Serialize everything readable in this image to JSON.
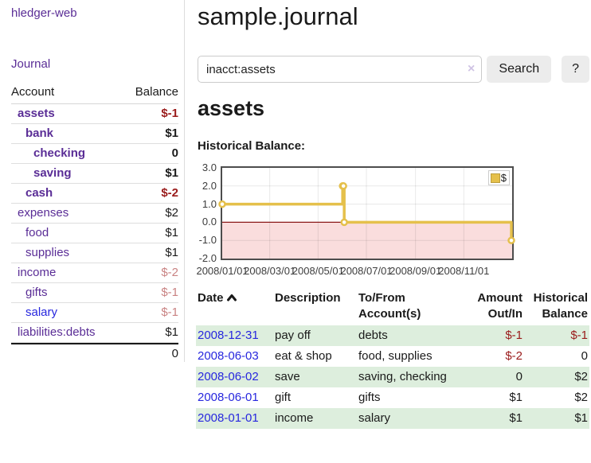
{
  "colors": {
    "purple": "#5A2D96",
    "blue": "#2727DE",
    "negative": "#9A1B1B",
    "faded": "#C98383",
    "normal": "#1A1A1A",
    "stripe": "#DDEEDD"
  },
  "sidebar": {
    "app_title": "hledger-web",
    "journal_label": "Journal",
    "table": {
      "account_header": "Account",
      "balance_header": "Balance",
      "total": "0"
    },
    "accounts": [
      {
        "name": "assets",
        "level": 1,
        "bold": true,
        "name_color": "purple",
        "balance": "$-1",
        "balance_color": "negative"
      },
      {
        "name": "bank",
        "level": 2,
        "bold": true,
        "name_color": "purple",
        "balance": "$1",
        "balance_color": "normal"
      },
      {
        "name": "checking",
        "level": 3,
        "bold": true,
        "name_color": "purple",
        "balance": "0",
        "balance_color": "normal"
      },
      {
        "name": "saving",
        "level": 3,
        "bold": true,
        "name_color": "purple",
        "balance": "$1",
        "balance_color": "normal"
      },
      {
        "name": "cash",
        "level": 2,
        "bold": true,
        "name_color": "purple",
        "balance": "$-2",
        "balance_color": "negative"
      },
      {
        "name": "expenses",
        "level": 1,
        "bold": false,
        "name_color": "purple",
        "balance": "$2",
        "balance_color": "normal"
      },
      {
        "name": "food",
        "level": 2,
        "bold": false,
        "name_color": "purple",
        "balance": "$1",
        "balance_color": "normal"
      },
      {
        "name": "supplies",
        "level": 2,
        "bold": false,
        "name_color": "purple",
        "balance": "$1",
        "balance_color": "normal"
      },
      {
        "name": "income",
        "level": 1,
        "bold": false,
        "name_color": "purple",
        "balance": "$-2",
        "balance_color": "faded"
      },
      {
        "name": "gifts",
        "level": 2,
        "bold": false,
        "name_color": "purple",
        "balance": "$-1",
        "balance_color": "faded"
      },
      {
        "name": "salary",
        "level": 2,
        "bold": false,
        "name_color": "blue",
        "balance": "$-1",
        "balance_color": "faded"
      },
      {
        "name": "liabilities:debts",
        "level": 1,
        "bold": false,
        "name_color": "purple",
        "balance": "$1",
        "balance_color": "normal"
      }
    ]
  },
  "header": {
    "title": "sample.journal",
    "search": {
      "value": "inacct:assets",
      "clear_icon": "×",
      "button_label": "Search",
      "help_label": "?"
    }
  },
  "main": {
    "account_heading": "assets"
  },
  "chart_data": {
    "type": "line",
    "step": true,
    "title": "Historical Balance:",
    "legend": {
      "label": "$",
      "position": "top-right"
    },
    "series": [
      {
        "name": "$",
        "color": "#E5C04B",
        "points": [
          [
            "2008-01-01",
            1
          ],
          [
            "2008-06-01",
            2
          ],
          [
            "2008-06-02",
            2
          ],
          [
            "2008-06-03",
            0
          ],
          [
            "2008-12-31",
            -1
          ]
        ]
      }
    ],
    "ylim": [
      -2,
      3
    ],
    "yticks": [
      "3.0",
      "2.0",
      "1.0",
      "0.0",
      "-1.0",
      "-2.0"
    ],
    "xticks": [
      {
        "label": "2008/01/01",
        "date": "2008-01-01"
      },
      {
        "label": "2008/03/01",
        "date": "2008-03-01"
      },
      {
        "label": "2008/05/01",
        "date": "2008-05-01"
      },
      {
        "label": "2008/07/01",
        "date": "2008-07-01"
      },
      {
        "label": "2008/09/01",
        "date": "2008-09-01"
      },
      {
        "label": "2008/11/01",
        "date": "2008-11-01"
      }
    ],
    "xrange": [
      "2008-01-01",
      "2009-01-01"
    ],
    "grid": true,
    "negative_region_color": "#FADDDD",
    "zero_line_color": "#8B1A1A"
  },
  "register": {
    "headers": {
      "date": "Date",
      "description": "Description",
      "account": "To/From Account(s)",
      "amount": "Amount Out/In",
      "balance": "Historical Balance"
    },
    "rows": [
      {
        "date": "2008-12-31",
        "description": "pay off",
        "accounts": "debts",
        "amount": "$-1",
        "amount_color": "negative",
        "balance": "$-1",
        "balance_color": "negative",
        "shaded": true
      },
      {
        "date": "2008-06-03",
        "description": "eat & shop",
        "accounts": "food, supplies",
        "amount": "$-2",
        "amount_color": "negative",
        "balance": "0",
        "balance_color": "normal",
        "shaded": false
      },
      {
        "date": "2008-06-02",
        "description": "save",
        "accounts": "saving, checking",
        "amount": "0",
        "amount_color": "normal",
        "balance": "$2",
        "balance_color": "normal",
        "shaded": true
      },
      {
        "date": "2008-06-01",
        "description": "gift",
        "accounts": "gifts",
        "amount": "$1",
        "amount_color": "normal",
        "balance": "$2",
        "balance_color": "normal",
        "shaded": false
      },
      {
        "date": "2008-01-01",
        "description": "income",
        "accounts": "salary",
        "amount": "$1",
        "amount_color": "normal",
        "balance": "$1",
        "balance_color": "normal",
        "shaded": true
      }
    ]
  }
}
